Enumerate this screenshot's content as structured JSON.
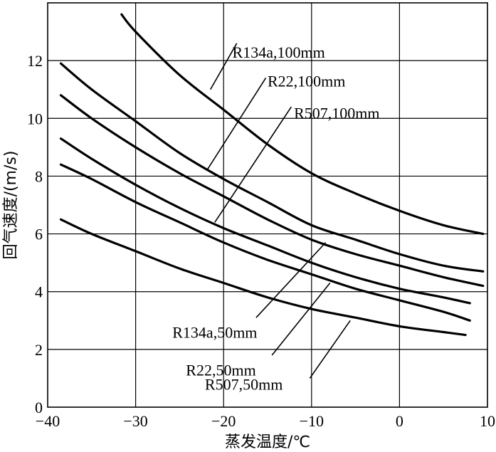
{
  "chart_data": {
    "type": "line",
    "title": "",
    "xlabel": "蒸发温度/℃",
    "ylabel": "回气速度/(m/s)",
    "xlim": [
      -40,
      10
    ],
    "ylim": [
      0,
      14
    ],
    "x_ticks": [
      -40,
      -30,
      -20,
      -10,
      0,
      10
    ],
    "x_tick_labels": [
      "−40",
      "−30",
      "−20",
      "−10",
      "0",
      "10"
    ],
    "y_ticks": [
      0,
      2,
      4,
      6,
      8,
      10,
      12
    ],
    "y_tick_labels": [
      "0",
      "2",
      "4",
      "6",
      "8",
      "10",
      "12"
    ],
    "grid": true,
    "series": [
      {
        "name": "R134a, 100mm",
        "label": "R134a,100mm",
        "x": [
          -31.6,
          -30,
          -25,
          -20,
          -15,
          -10,
          -5,
          0,
          5,
          9.5
        ],
        "y": [
          13.6,
          13.0,
          11.5,
          10.3,
          9.1,
          8.1,
          7.4,
          6.8,
          6.3,
          6.0
        ]
      },
      {
        "name": "R22, 100mm",
        "label": "R22,100mm",
        "x": [
          -38.5,
          -35,
          -30,
          -25,
          -20,
          -15,
          -10,
          -5,
          0,
          5,
          9.5
        ],
        "y": [
          11.9,
          11.0,
          9.9,
          8.8,
          7.9,
          7.1,
          6.3,
          5.8,
          5.3,
          4.9,
          4.7
        ]
      },
      {
        "name": "R507, 100mm",
        "label": "R507,100mm",
        "x": [
          -38.5,
          -35,
          -30,
          -25,
          -20,
          -15,
          -10,
          -5,
          0,
          5,
          9.5
        ],
        "y": [
          10.8,
          10.0,
          9.0,
          8.1,
          7.3,
          6.5,
          5.8,
          5.3,
          4.9,
          4.5,
          4.2
        ]
      },
      {
        "name": "R134a, 50mm",
        "label": "R134a,50mm",
        "x": [
          -38.5,
          -35,
          -30,
          -25,
          -20,
          -15,
          -10,
          -5,
          0,
          5,
          8
        ],
        "y": [
          9.3,
          8.6,
          7.7,
          6.9,
          6.2,
          5.6,
          5.0,
          4.5,
          4.1,
          3.8,
          3.6
        ]
      },
      {
        "name": "R22, 50mm",
        "label": "R22,50mm",
        "x": [
          -38.5,
          -35,
          -30,
          -25,
          -20,
          -15,
          -10,
          -5,
          0,
          5,
          8
        ],
        "y": [
          8.4,
          7.9,
          7.1,
          6.4,
          5.7,
          5.1,
          4.6,
          4.1,
          3.7,
          3.3,
          3.0
        ]
      },
      {
        "name": "R507, 50mm",
        "label": "R507,50mm",
        "x": [
          -38.5,
          -35,
          -30,
          -25,
          -20,
          -15,
          -10,
          -5,
          0,
          5,
          7.5
        ],
        "y": [
          6.5,
          6.0,
          5.4,
          4.8,
          4.3,
          3.8,
          3.4,
          3.1,
          2.8,
          2.6,
          2.5
        ]
      }
    ],
    "annotations": [
      {
        "series": 0,
        "text": "R134a,100mm",
        "label_pos": [
          -19,
          12.1
        ],
        "anchor": "start",
        "point": [
          -21.5,
          11.0
        ],
        "leader_start": [
          -18.5,
          12.6
        ],
        "leader_end": [
          -21.5,
          11.0
        ]
      },
      {
        "series": 1,
        "text": "R22,100mm",
        "label_pos": [
          -15,
          11.1
        ],
        "anchor": "start",
        "point": [
          -21.9,
          8.2
        ],
        "leader_start": [
          -15.2,
          11.4
        ],
        "leader_end": [
          -21.9,
          8.2
        ]
      },
      {
        "series": 2,
        "text": "R507,100mm",
        "label_pos": [
          -12,
          10.0
        ],
        "anchor": "start",
        "point": [
          -21,
          6.4
        ],
        "leader_start": [
          -12.3,
          10.4
        ],
        "leader_end": [
          -21,
          6.4
        ]
      },
      {
        "series": 3,
        "text": "R134a,50mm",
        "label_pos": [
          -21,
          2.4
        ],
        "anchor": "middle",
        "point": [
          -8.4,
          5.7
        ],
        "leader_start": [
          -16.3,
          3.1
        ],
        "leader_end": [
          -8.4,
          5.7
        ]
      },
      {
        "series": 4,
        "text": "R22,50mm",
        "label_pos": [
          -20.3,
          1.1
        ],
        "anchor": "middle",
        "point": [
          -7.9,
          4.3
        ],
        "leader_start": [
          -14.5,
          1.8
        ],
        "leader_end": [
          -7.9,
          4.3
        ]
      },
      {
        "series": 5,
        "text": "R507,50mm",
        "label_pos": [
          -17.7,
          0.6
        ],
        "anchor": "middle",
        "point": [
          -5.6,
          3.0
        ],
        "leader_start": [
          -10.2,
          1.0
        ],
        "leader_end": [
          -5.6,
          3.0
        ]
      }
    ]
  }
}
